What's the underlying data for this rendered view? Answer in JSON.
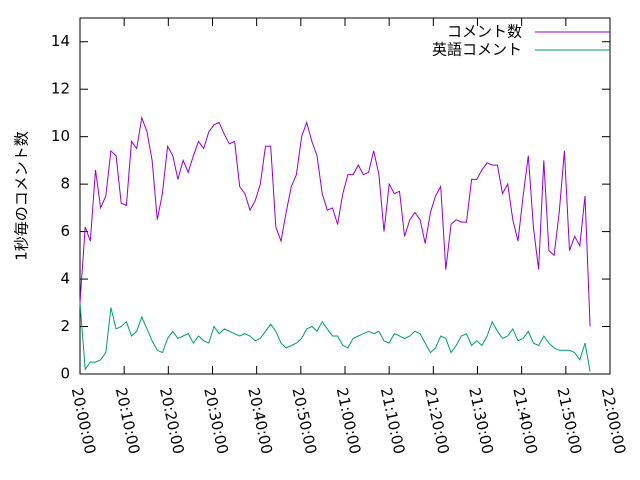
{
  "chart_data": {
    "type": "line",
    "ylabel": "1秒毎のコメント数",
    "x": [
      "20:00:00",
      "20:01:10",
      "20:02:20",
      "20:03:30",
      "20:04:40",
      "20:05:50",
      "20:07:00",
      "20:08:10",
      "20:09:20",
      "20:10:30",
      "20:11:40",
      "20:12:50",
      "20:14:00",
      "20:15:10",
      "20:16:20",
      "20:17:30",
      "20:18:40",
      "20:19:50",
      "20:21:00",
      "20:22:10",
      "20:23:20",
      "20:24:30",
      "20:25:40",
      "20:26:50",
      "20:28:00",
      "20:29:10",
      "20:30:20",
      "20:31:30",
      "20:32:40",
      "20:33:50",
      "20:35:00",
      "20:36:10",
      "20:37:20",
      "20:38:30",
      "20:39:40",
      "20:40:50",
      "20:42:00",
      "20:43:10",
      "20:44:20",
      "20:45:30",
      "20:46:40",
      "20:47:50",
      "20:49:00",
      "20:50:10",
      "20:51:20",
      "20:52:30",
      "20:53:40",
      "20:54:50",
      "20:56:00",
      "20:57:10",
      "20:58:20",
      "20:59:30",
      "21:00:40",
      "21:01:50",
      "21:03:00",
      "21:04:10",
      "21:05:20",
      "21:06:30",
      "21:07:40",
      "21:08:50",
      "21:10:00",
      "21:11:10",
      "21:12:20",
      "21:13:30",
      "21:14:40",
      "21:15:50",
      "21:17:00",
      "21:18:10",
      "21:19:20",
      "21:20:30",
      "21:21:40",
      "21:22:50",
      "21:24:00",
      "21:25:10",
      "21:26:20",
      "21:27:30",
      "21:28:40",
      "21:29:50",
      "21:31:00",
      "21:32:10",
      "21:33:20",
      "21:34:30",
      "21:35:40",
      "21:36:50",
      "21:38:00",
      "21:39:10",
      "21:40:20",
      "21:41:30",
      "21:42:40",
      "21:43:50",
      "21:45:00",
      "21:46:10",
      "21:47:20",
      "21:48:30",
      "21:49:40",
      "21:50:50",
      "21:52:00",
      "21:53:10",
      "21:54:20",
      "21:55:30"
    ],
    "series": [
      {
        "name": "コメント数",
        "color": "#9400d3",
        "values": [
          3.0,
          6.2,
          5.6,
          8.6,
          7.0,
          7.5,
          9.4,
          9.2,
          7.2,
          7.1,
          9.8,
          9.5,
          10.8,
          10.2,
          9.0,
          6.5,
          7.6,
          9.6,
          9.2,
          8.2,
          9.0,
          8.5,
          9.2,
          9.8,
          9.5,
          10.2,
          10.5,
          10.6,
          10.1,
          9.7,
          9.8,
          7.9,
          7.6,
          6.9,
          7.3,
          8.0,
          9.6,
          9.6,
          6.2,
          5.6,
          6.8,
          7.9,
          8.4,
          10.0,
          10.6,
          9.8,
          9.2,
          7.6,
          6.9,
          7.0,
          6.3,
          7.6,
          8.4,
          8.4,
          8.8,
          8.4,
          8.5,
          9.4,
          8.4,
          6.0,
          8.0,
          7.6,
          7.7,
          5.8,
          6.5,
          6.8,
          6.5,
          5.5,
          6.8,
          7.5,
          7.9,
          4.4,
          6.3,
          6.5,
          6.4,
          6.4,
          8.2,
          8.2,
          8.6,
          8.9,
          8.8,
          8.8,
          7.6,
          8.0,
          6.5,
          5.6,
          7.5,
          9.2,
          6.2,
          4.4,
          9.0,
          5.2,
          5.0,
          6.8,
          9.4,
          5.2,
          5.8,
          5.4,
          7.5,
          2.0
        ]
      },
      {
        "name": "英語コメント",
        "color": "#009e73",
        "values": [
          3.0,
          0.2,
          0.5,
          0.5,
          0.6,
          0.9,
          2.8,
          1.9,
          2.0,
          2.2,
          1.6,
          1.8,
          2.4,
          1.9,
          1.4,
          1.0,
          0.9,
          1.5,
          1.8,
          1.5,
          1.6,
          1.7,
          1.3,
          1.6,
          1.4,
          1.3,
          2.0,
          1.7,
          1.9,
          1.8,
          1.7,
          1.6,
          1.7,
          1.6,
          1.4,
          1.5,
          1.8,
          2.1,
          1.8,
          1.3,
          1.1,
          1.2,
          1.3,
          1.5,
          1.9,
          2.0,
          1.8,
          2.2,
          1.9,
          1.6,
          1.6,
          1.2,
          1.1,
          1.5,
          1.6,
          1.7,
          1.8,
          1.7,
          1.8,
          1.4,
          1.3,
          1.7,
          1.6,
          1.5,
          1.6,
          1.8,
          1.7,
          1.3,
          0.9,
          1.1,
          1.6,
          1.5,
          0.9,
          1.2,
          1.6,
          1.7,
          1.2,
          1.4,
          1.2,
          1.6,
          2.2,
          1.8,
          1.5,
          1.6,
          1.9,
          1.4,
          1.5,
          1.8,
          1.3,
          1.2,
          1.6,
          1.3,
          1.1,
          1.0,
          1.0,
          1.0,
          0.9,
          0.6,
          1.3,
          0.1
        ]
      }
    ],
    "xlim": [
      "20:00:00",
      "22:00:00"
    ],
    "xticks": [
      "20:00:00",
      "20:10:00",
      "20:20:00",
      "20:30:00",
      "20:40:00",
      "20:50:00",
      "21:00:00",
      "21:10:00",
      "21:20:00",
      "21:30:00",
      "21:40:00",
      "21:50:00",
      "22:00:00"
    ],
    "ylim": [
      0,
      15
    ],
    "yticks": [
      0,
      2,
      4,
      6,
      8,
      10,
      12,
      14
    ],
    "legend": "top-right"
  }
}
